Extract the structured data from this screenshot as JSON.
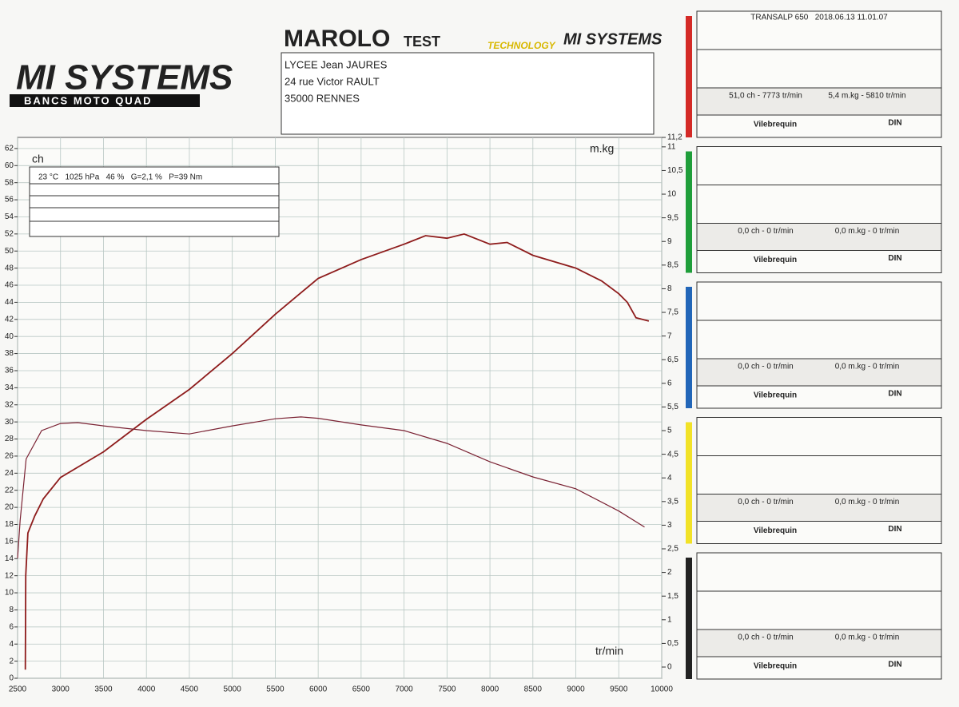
{
  "header": {
    "brand_left": "MI SYSTEMS",
    "brand_left_sub": "BANCS MOTO QUAD",
    "brand_center": "MAROLO",
    "brand_center_sub": "TEST",
    "brand_right_tag": "TECHNOLOGY",
    "brand_right": "MI SYSTEMS",
    "address": [
      "LYCEE Jean JAURES",
      "24 rue Victor RAULT",
      "35000 RENNES"
    ]
  },
  "conditions": "23 °C   1025 hPa   46 %   G=2,1 %   P=39 Nm",
  "chart_data": {
    "type": "line",
    "ylabel": "ch",
    "y2label": "m.kg",
    "xlabel": "tr/min",
    "xlim": [
      2500,
      10000
    ],
    "xticks": [
      2500,
      3000,
      3500,
      4000,
      4500,
      5000,
      5500,
      6000,
      6500,
      7000,
      7500,
      8000,
      8500,
      9000,
      9500,
      10000
    ],
    "ylim": [
      0,
      63.3
    ],
    "yticks": [
      0,
      2,
      4,
      6,
      8,
      10,
      12,
      14,
      16,
      18,
      20,
      22,
      24,
      26,
      28,
      30,
      32,
      34,
      36,
      38,
      40,
      42,
      44,
      46,
      48,
      50,
      52,
      54,
      56,
      58,
      60,
      62
    ],
    "y2lim": [
      0,
      11.2
    ],
    "y2ticks": [
      0,
      {
        "value": 0.5,
        "label": "0,5"
      },
      1,
      {
        "value": 1.5,
        "label": "1,5"
      },
      2,
      {
        "value": 2.5,
        "label": "2,5"
      },
      3,
      {
        "value": 3.5,
        "label": "3,5"
      },
      4,
      {
        "value": 4.5,
        "label": "4,5"
      },
      5,
      {
        "value": 5.5,
        "label": "5,5"
      },
      6,
      {
        "value": 6.5,
        "label": "6,5"
      },
      7,
      {
        "value": 7.5,
        "label": "7,5"
      },
      8,
      {
        "value": 8.5,
        "label": "8,5"
      },
      9,
      {
        "value": 9.5,
        "label": "9,5"
      },
      10,
      {
        "value": 10.5,
        "label": "10,5"
      },
      11,
      {
        "value": 11.2,
        "label": "11,2"
      }
    ],
    "grid": true,
    "series": [
      {
        "color": "#8e1c1c",
        "x": [
          2590,
          2595,
          2620,
          2700,
          2800,
          3000,
          3500,
          4000,
          4500,
          5000,
          5500,
          6000,
          6500,
          7000,
          7250,
          7500,
          7700,
          8000,
          8200,
          8500,
          9000,
          9300,
          9500,
          9600,
          9700,
          9850
        ],
        "values": [
          1,
          12,
          17,
          19,
          21,
          23.5,
          26.5,
          30.3,
          33.8,
          38,
          42.6,
          46.8,
          49,
          50.8,
          51.8,
          51.5,
          52,
          50.8,
          51,
          49.5,
          48,
          46.5,
          45,
          44,
          42.2,
          41.8
        ]
      },
      {
        "color": "#7a2233",
        "axis": "y2",
        "x": [
          2500,
          2530,
          2600,
          2780,
          3000,
          3200,
          3500,
          4000,
          4500,
          5000,
          5500,
          5800,
          6000,
          6500,
          7000,
          7500,
          8000,
          8500,
          9000,
          9500,
          9800
        ],
        "values": [
          2.3,
          3.1,
          4.4,
          5.0,
          5.15,
          5.17,
          5.1,
          5.0,
          4.93,
          5.1,
          5.25,
          5.29,
          5.26,
          5.12,
          5.0,
          4.73,
          4.34,
          4.02,
          3.77,
          3.3,
          2.96
        ]
      }
    ]
  },
  "panels": [
    {
      "color": "#d42a26",
      "title": "TRANSALP 650   2018.06.13 11.01.07",
      "power": "51,0 ch - 7773 tr/min",
      "torque": "5,4 m.kg - 5810 tr/min",
      "crank": "Vilebrequin",
      "norm": "DIN"
    },
    {
      "color": "#1f9e3a",
      "power": "0,0 ch - 0 tr/min",
      "torque": "0,0 m.kg - 0 tr/min",
      "crank": "Vilebrequin",
      "norm": "DIN"
    },
    {
      "color": "#2266b8",
      "power": "0,0 ch - 0 tr/min",
      "torque": "0,0 m.kg - 0 tr/min",
      "crank": "Vilebrequin",
      "norm": "DIN"
    },
    {
      "color": "#f2e227",
      "power": "0,0 ch - 0 tr/min",
      "torque": "0,0 m.kg - 0 tr/min",
      "crank": "Vilebrequin",
      "norm": "DIN"
    },
    {
      "color": "#222222",
      "power": "0,0 ch - 0 tr/min",
      "torque": "0,0 m.kg - 0 tr/min",
      "crank": "Vilebrequin",
      "norm": "DIN"
    }
  ]
}
